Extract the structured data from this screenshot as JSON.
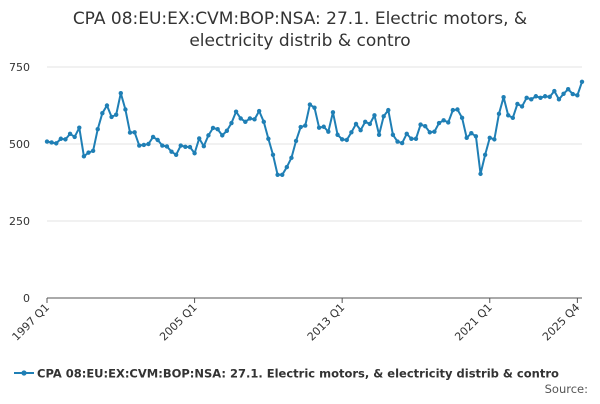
{
  "chart_data": {
    "type": "line",
    "title": "CPA 08:EU:EX:CVM:BOP:NSA: 27.1. Electric motors, & electricity distrib & contro",
    "title_lines": [
      "CPA 08:EU:EX:CVM:BOP:NSA: 27.1. Electric motors, &",
      "electricity distrib & contro"
    ],
    "xlabel": "",
    "ylabel": "",
    "ylim": [
      0,
      750
    ],
    "yticks": [
      0,
      250,
      500,
      750
    ],
    "xticks": [
      "1997 Q1",
      "2005 Q1",
      "2013 Q1",
      "2021 Q1",
      "2025 Q4"
    ],
    "grid": true,
    "legend_position": "bottom",
    "source_label": "Source:",
    "colors": {
      "series": "#1f7fb5",
      "grid": "#e3e3e3",
      "axis": "#555555",
      "text": "#333333"
    },
    "series": [
      {
        "name": "CPA 08:EU:EX:CVM:BOP:NSA: 27.1. Electric motors, & electricity distrib & contro",
        "start": "1997 Q1",
        "frequency": "quarterly",
        "values": [
          508,
          505,
          502,
          517,
          515,
          533,
          523,
          553,
          460,
          472,
          478,
          548,
          600,
          625,
          588,
          595,
          665,
          612,
          537,
          538,
          495,
          497,
          500,
          523,
          513,
          495,
          492,
          475,
          465,
          495,
          491,
          490,
          470,
          518,
          493,
          528,
          552,
          548,
          528,
          543,
          568,
          605,
          583,
          572,
          583,
          580,
          607,
          572,
          517,
          465,
          400,
          400,
          425,
          455,
          510,
          555,
          560,
          628,
          618,
          553,
          556,
          540,
          603,
          530,
          515,
          513,
          538,
          565,
          545,
          572,
          565,
          593,
          530,
          590,
          610,
          530,
          508,
          503,
          533,
          517,
          517,
          563,
          558,
          538,
          540,
          568,
          577,
          570,
          610,
          612,
          585,
          520,
          535,
          525,
          403,
          465,
          520,
          515,
          598,
          652,
          593,
          585,
          630,
          622,
          650,
          645,
          655,
          650,
          655,
          653,
          672,
          645,
          663,
          678,
          662,
          658,
          702
        ]
      }
    ]
  }
}
